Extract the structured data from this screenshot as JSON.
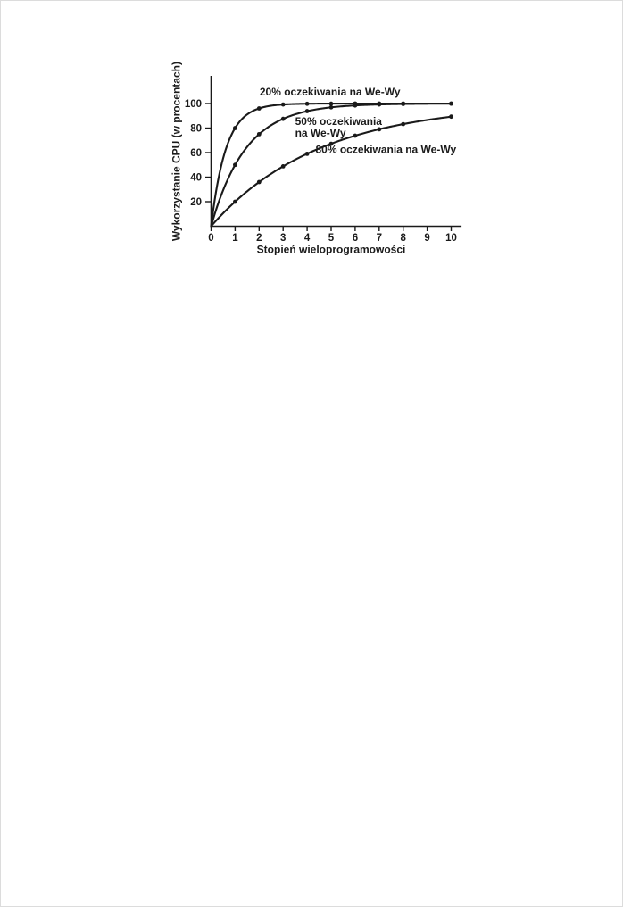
{
  "page": {
    "background_color": "#ffffff",
    "ink_color": "#1a1a1a"
  },
  "chart_data": {
    "type": "line",
    "title": "",
    "xlabel": "Stopień wieloprogramowości",
    "ylabel": "Wykorzystanie CPU (w procentach)",
    "x": [
      0,
      1,
      2,
      3,
      4,
      5,
      6,
      7,
      8,
      9,
      10
    ],
    "x_ticks": [
      0,
      1,
      2,
      3,
      4,
      5,
      6,
      7,
      8,
      9,
      10
    ],
    "y_ticks": [
      20,
      40,
      60,
      80,
      100
    ],
    "xlim": [
      0,
      10.4
    ],
    "ylim": [
      0,
      122
    ],
    "grid": false,
    "legend_position": "inline-annotations",
    "line_color": "#1a1a1a",
    "marker": "filled-circle",
    "marker_x": [
      1,
      2,
      3,
      4,
      5,
      6,
      7,
      8,
      10
    ],
    "series": [
      {
        "name": "20% oczekiwania na We-Wy",
        "io_wait_percent": 20,
        "values": [
          0,
          80,
          96,
          99.2,
          99.8,
          99.9,
          100,
          100,
          100,
          100,
          100
        ]
      },
      {
        "name": "50% oczekiwania na We-Wy",
        "io_wait_percent": 50,
        "values": [
          0,
          50,
          75,
          87.5,
          93.8,
          96.9,
          98.4,
          99.2,
          99.6,
          99.8,
          99.9
        ]
      },
      {
        "name": "80% oczekiwania na We-Wy",
        "io_wait_percent": 80,
        "values": [
          0,
          20,
          36,
          48.8,
          59,
          67.2,
          73.8,
          79,
          83.2,
          86.6,
          89.3
        ]
      }
    ],
    "annotations": [
      {
        "name": "label-20-io-wait",
        "text": "20% oczekiwania na We-Wy",
        "x": 4.95,
        "y": 106.5,
        "anchor": "middle"
      },
      {
        "name": "label-50-io-wait-line1",
        "text": "50% oczekiwania",
        "x": 3.5,
        "y": 82.5,
        "anchor": "start"
      },
      {
        "name": "label-50-io-wait-line2",
        "text": "na We-Wy",
        "x": 3.5,
        "y": 73,
        "anchor": "start"
      },
      {
        "name": "label-80-io-wait",
        "text": "80% oczekiwania na We-Wy",
        "x": 4.35,
        "y": 59.5,
        "anchor": "start"
      }
    ]
  }
}
